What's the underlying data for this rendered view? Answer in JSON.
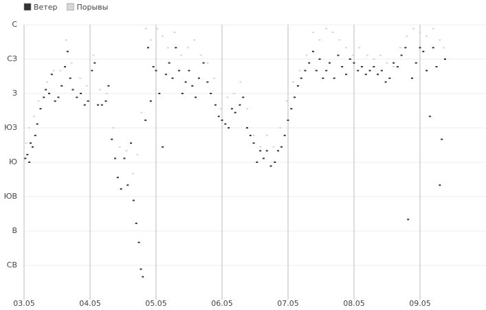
{
  "chart_data": {
    "type": "scatter",
    "xlim": [
      3,
      10
    ],
    "xticks": [
      {
        "value": 3,
        "label": "03.05"
      },
      {
        "value": 4,
        "label": "04.05"
      },
      {
        "value": 5,
        "label": "05.05"
      },
      {
        "value": 6,
        "label": "06.05"
      },
      {
        "value": 7,
        "label": "07.05"
      },
      {
        "value": 8,
        "label": "08.05"
      },
      {
        "value": 9,
        "label": "09.05"
      }
    ],
    "ylim": [
      0,
      360
    ],
    "yticks": [
      {
        "value": 45,
        "label": "СВ"
      },
      {
        "value": 90,
        "label": "В"
      },
      {
        "value": 135,
        "label": "ЮВ"
      },
      {
        "value": 180,
        "label": "Ю"
      },
      {
        "value": 225,
        "label": "ЮЗ"
      },
      {
        "value": 270,
        "label": "З"
      },
      {
        "value": 315,
        "label": "СЗ"
      },
      {
        "value": 360,
        "label": "С"
      }
    ],
    "grid": true,
    "legend": "top-left",
    "series": [
      {
        "name": "Порывы",
        "color": "#d6d6d6",
        "x": [
          3.03,
          3.08,
          3.15,
          3.22,
          3.35,
          3.45,
          3.55,
          3.64,
          3.72,
          3.85,
          3.95,
          4.05,
          4.15,
          4.25,
          4.35,
          4.45,
          4.55,
          4.65,
          4.72,
          4.78,
          4.85,
          4.92,
          5.02,
          5.1,
          5.18,
          5.28,
          5.38,
          5.48,
          5.58,
          5.68,
          5.78,
          5.88,
          5.98,
          6.08,
          6.18,
          6.28,
          6.38,
          6.48,
          6.58,
          6.68,
          6.78,
          6.88,
          6.98,
          7.08,
          7.18,
          7.28,
          7.38,
          7.48,
          7.58,
          7.68,
          7.78,
          7.88,
          7.98,
          8.08,
          8.2,
          8.3,
          8.4,
          8.5,
          8.6,
          8.7,
          8.8,
          8.9,
          9.0,
          9.1,
          9.2,
          9.3,
          9.36
        ],
        "values": [
          205,
          225,
          240,
          260,
          285,
          300,
          300,
          340,
          310,
          290,
          280,
          320,
          275,
          270,
          225,
          200,
          195,
          165,
          190,
          245,
          355,
          340,
          355,
          345,
          330,
          350,
          320,
          330,
          340,
          320,
          310,
          290,
          250,
          265,
          270,
          285,
          250,
          215,
          200,
          215,
          200,
          225,
          260,
          285,
          300,
          320,
          350,
          340,
          355,
          350,
          340,
          330,
          320,
          330,
          320,
          315,
          320,
          310,
          305,
          330,
          345,
          355,
          350,
          345,
          355,
          340,
          330
        ]
      },
      {
        "name": "Ветер",
        "color": "#333333",
        "x": [
          3.02,
          3.05,
          3.08,
          3.1,
          3.13,
          3.17,
          3.2,
          3.25,
          3.3,
          3.33,
          3.38,
          3.42,
          3.47,
          3.52,
          3.57,
          3.62,
          3.66,
          3.7,
          3.74,
          3.8,
          3.86,
          3.92,
          3.97,
          4.03,
          4.07,
          4.12,
          4.18,
          4.24,
          4.28,
          4.33,
          4.38,
          4.42,
          4.47,
          4.52,
          4.57,
          4.62,
          4.66,
          4.7,
          4.74,
          4.77,
          4.8,
          4.84,
          4.88,
          4.92,
          4.96,
          5.0,
          5.05,
          5.1,
          5.15,
          5.2,
          5.25,
          5.3,
          5.35,
          5.4,
          5.45,
          5.5,
          5.55,
          5.6,
          5.65,
          5.72,
          5.78,
          5.83,
          5.9,
          5.95,
          6.0,
          6.05,
          6.1,
          6.15,
          6.2,
          6.27,
          6.32,
          6.38,
          6.43,
          6.48,
          6.53,
          6.58,
          6.63,
          6.68,
          6.74,
          6.8,
          6.85,
          6.9,
          6.95,
          7.0,
          7.05,
          7.1,
          7.15,
          7.2,
          7.26,
          7.32,
          7.38,
          7.43,
          7.48,
          7.53,
          7.58,
          7.63,
          7.7,
          7.76,
          7.82,
          7.88,
          7.94,
          8.0,
          8.06,
          8.12,
          8.18,
          8.24,
          8.3,
          8.36,
          8.42,
          8.48,
          8.54,
          8.6,
          8.66,
          8.72,
          8.78,
          8.82,
          8.88,
          8.94,
          9.0,
          9.05,
          9.1,
          9.15,
          9.2,
          9.25,
          9.3,
          9.33,
          9.38
        ],
        "values": [
          185,
          190,
          180,
          205,
          200,
          215,
          230,
          250,
          265,
          275,
          270,
          295,
          260,
          265,
          280,
          305,
          325,
          290,
          275,
          265,
          270,
          255,
          260,
          300,
          310,
          255,
          255,
          260,
          280,
          210,
          185,
          160,
          145,
          185,
          150,
          205,
          130,
          100,
          75,
          40,
          30,
          235,
          330,
          260,
          305,
          300,
          270,
          200,
          295,
          310,
          290,
          330,
          300,
          270,
          285,
          300,
          280,
          265,
          290,
          310,
          285,
          270,
          255,
          240,
          235,
          230,
          225,
          250,
          245,
          255,
          265,
          225,
          215,
          205,
          180,
          195,
          185,
          195,
          175,
          180,
          195,
          200,
          215,
          235,
          250,
          265,
          280,
          290,
          300,
          310,
          325,
          300,
          315,
          290,
          300,
          310,
          290,
          320,
          305,
          295,
          315,
          310,
          300,
          305,
          295,
          300,
          305,
          295,
          300,
          285,
          290,
          310,
          305,
          320,
          330,
          105,
          290,
          310,
          330,
          325,
          300,
          240,
          330,
          305,
          150,
          210,
          315
        ]
      }
    ]
  }
}
